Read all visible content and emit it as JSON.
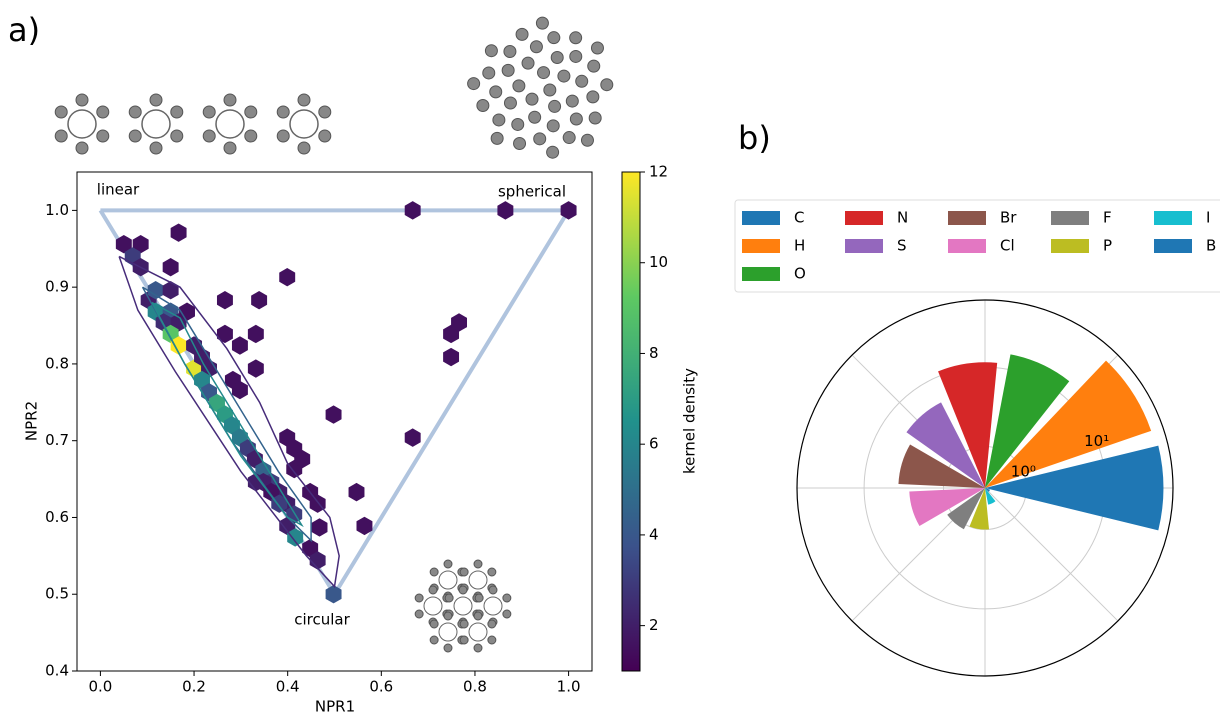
{
  "chart_data": [
    {
      "type": "hexbin",
      "panel": "a)",
      "xlabel": "NPR1",
      "ylabel": "NPR2",
      "xlim": [
        -0.05,
        1.05
      ],
      "ylim": [
        0.4,
        1.05
      ],
      "xticks": [
        {
          "value": 0,
          "label": "0.0"
        },
        0.2,
        0.4,
        0.6,
        0.8,
        {
          "value": 1,
          "label": "1.0"
        }
      ],
      "yticks": [
        0.4,
        0.5,
        0.6,
        0.7,
        0.8,
        0.9,
        {
          "value": 1,
          "label": "1.0"
        }
      ],
      "x": [
        0.05,
        0.086,
        0.069,
        0.086,
        0.167,
        0.15,
        0.103,
        0.118,
        0.15,
        0.118,
        0.15,
        0.135,
        0.167,
        0.185,
        0.15,
        0.167,
        0.2,
        0.2,
        0.217,
        0.232,
        0.217,
        0.232,
        0.249,
        0.266,
        0.281,
        0.298,
        0.315,
        0.33,
        0.348,
        0.365,
        0.348,
        0.332,
        0.382,
        0.365,
        0.399,
        0.382,
        0.414,
        0.399,
        0.416,
        0.448,
        0.464,
        0.468,
        0.448,
        0.464,
        0.498,
        0.266,
        0.298,
        0.332,
        0.339,
        0.266,
        0.399,
        0.283,
        0.298,
        0.332,
        0.399,
        0.414,
        0.414,
        0.431,
        0.498,
        0.547,
        0.564,
        0.667,
        0.749,
        0.749,
        0.766,
        0.667,
        0.865,
        1.0
      ],
      "y": [
        0.956,
        0.956,
        0.94,
        0.926,
        0.971,
        0.926,
        0.883,
        0.896,
        0.896,
        0.868,
        0.868,
        0.854,
        0.854,
        0.868,
        0.839,
        0.824,
        0.824,
        0.794,
        0.809,
        0.794,
        0.779,
        0.763,
        0.749,
        0.734,
        0.72,
        0.704,
        0.69,
        0.676,
        0.661,
        0.646,
        0.646,
        0.646,
        0.633,
        0.633,
        0.618,
        0.618,
        0.604,
        0.589,
        0.574,
        0.633,
        0.618,
        0.587,
        0.56,
        0.544,
        0.5,
        0.839,
        0.824,
        0.839,
        0.883,
        0.883,
        0.913,
        0.779,
        0.766,
        0.794,
        0.704,
        0.69,
        0.663,
        0.676,
        0.734,
        0.633,
        0.589,
        0.704,
        0.809,
        0.839,
        0.854,
        1.0,
        1.0,
        1.0
      ],
      "values": [
        1.5,
        1.5,
        3,
        2,
        1.5,
        1.5,
        2,
        4,
        2,
        6,
        4,
        2.5,
        2,
        1.5,
        9,
        12,
        2,
        11.5,
        2,
        2,
        6,
        4,
        7.5,
        7,
        6,
        5.5,
        3,
        2,
        4.5,
        3,
        2,
        2,
        2,
        1.5,
        2,
        3,
        3,
        2,
        6,
        1.5,
        1.5,
        1.5,
        1.5,
        2,
        4,
        1.5,
        1.5,
        1.5,
        1.5,
        1.5,
        1.5,
        1.5,
        1.5,
        1.5,
        1.5,
        1.5,
        1.5,
        1.5,
        1.5,
        1.5,
        1.5,
        1.5,
        1.5,
        1.5,
        1.5,
        1.5,
        1.5,
        1.5
      ],
      "clim": [
        1,
        12
      ],
      "cticks": [
        2,
        4,
        6,
        8,
        10,
        12
      ],
      "colorbar_label": "kernel density",
      "boundary": {
        "color": "#b0c4de",
        "x": [
          0,
          0.5,
          1,
          0
        ],
        "y": [
          1,
          0.5,
          1,
          1
        ]
      },
      "contours": [
        {
          "color": "#472c7a",
          "x": [
            0.04,
            0.17,
            0.27,
            0.34,
            0.4,
            0.49,
            0.51,
            0.5,
            0.44,
            0.3,
            0.16,
            0.08,
            0.04
          ],
          "y": [
            0.94,
            0.9,
            0.82,
            0.75,
            0.67,
            0.6,
            0.55,
            0.51,
            0.55,
            0.66,
            0.79,
            0.87,
            0.94
          ]
        },
        {
          "color": "#33638d",
          "x": [
            0.09,
            0.17,
            0.24,
            0.32,
            0.38,
            0.45,
            0.45,
            0.4,
            0.28,
            0.18,
            0.09
          ],
          "y": [
            0.9,
            0.87,
            0.8,
            0.72,
            0.66,
            0.6,
            0.57,
            0.6,
            0.7,
            0.8,
            0.9
          ]
        },
        {
          "color": "#238a8d",
          "x": [
            0.11,
            0.17,
            0.22,
            0.3,
            0.37,
            0.43,
            0.4,
            0.3,
            0.18,
            0.11
          ],
          "y": [
            0.88,
            0.86,
            0.8,
            0.72,
            0.65,
            0.59,
            0.6,
            0.68,
            0.8,
            0.88
          ]
        }
      ],
      "annotations": [
        "linear",
        "spherical",
        "circular"
      ]
    },
    {
      "type": "polar-bar",
      "panel": "b)",
      "log": true,
      "categories": [
        "C",
        "H",
        "O",
        "N",
        "S",
        "Br",
        "Cl",
        "F",
        "P",
        "I",
        "B"
      ],
      "colors": [
        "#1f77b4",
        "#ff7f0e",
        "#2ca02c",
        "#d62728",
        "#9467bd",
        "#8c564b",
        "#e377c2",
        "#7f7f7f",
        "#bcbd22",
        "#17becf",
        "#1f77b4"
      ],
      "values": [
        53,
        49,
        15.5,
        11.5,
        4.9,
        3.7,
        2.7,
        1.15,
        1,
        0.49,
        0.35
      ],
      "rlim": [
        0.3,
        70
      ],
      "rticks": [
        {
          "value": 1,
          "label": "10⁰"
        },
        {
          "value": 10,
          "label": "10¹"
        }
      ]
    }
  ]
}
